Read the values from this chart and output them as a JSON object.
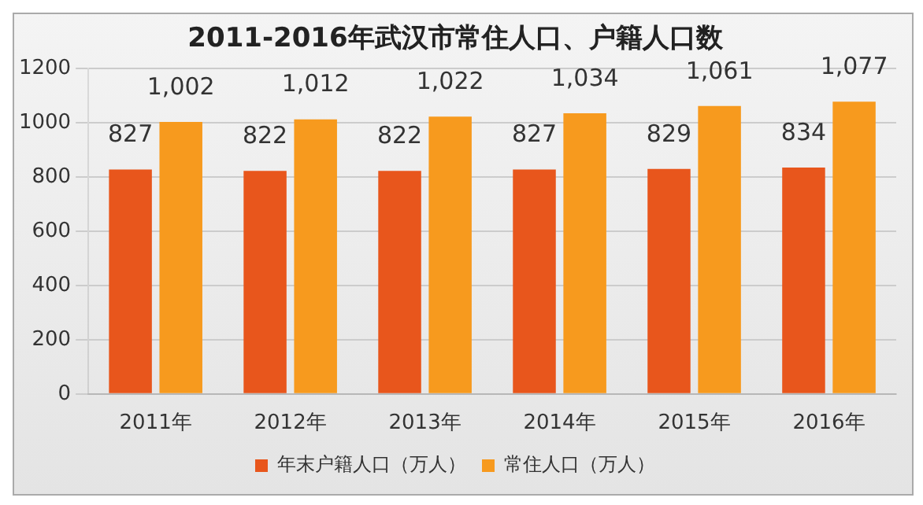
{
  "chart_data": {
    "type": "bar",
    "title": "2011-2016年武汉市常住人口、户籍人口数",
    "categories": [
      "2011年",
      "2012年",
      "2013年",
      "2014年",
      "2015年",
      "2016年"
    ],
    "series": [
      {
        "name": "年末户籍人口（万人）",
        "color": "#e8561c",
        "values": [
          827,
          822,
          822,
          827,
          829,
          834
        ],
        "value_labels": [
          "827",
          "822",
          "822",
          "827",
          "829",
          "834"
        ]
      },
      {
        "name": "常住人口（万人）",
        "color": "#f79a1e",
        "values": [
          1002,
          1012,
          1022,
          1034,
          1061,
          1077
        ],
        "value_labels": [
          "1,002",
          "1,012",
          "1,022",
          "1,034",
          "1,061",
          "1,077"
        ]
      }
    ],
    "ylim": [
      0,
      1200
    ],
    "yticks": [
      0,
      200,
      400,
      600,
      800,
      1000,
      1200
    ],
    "grid": "y",
    "legend": "bottom"
  }
}
